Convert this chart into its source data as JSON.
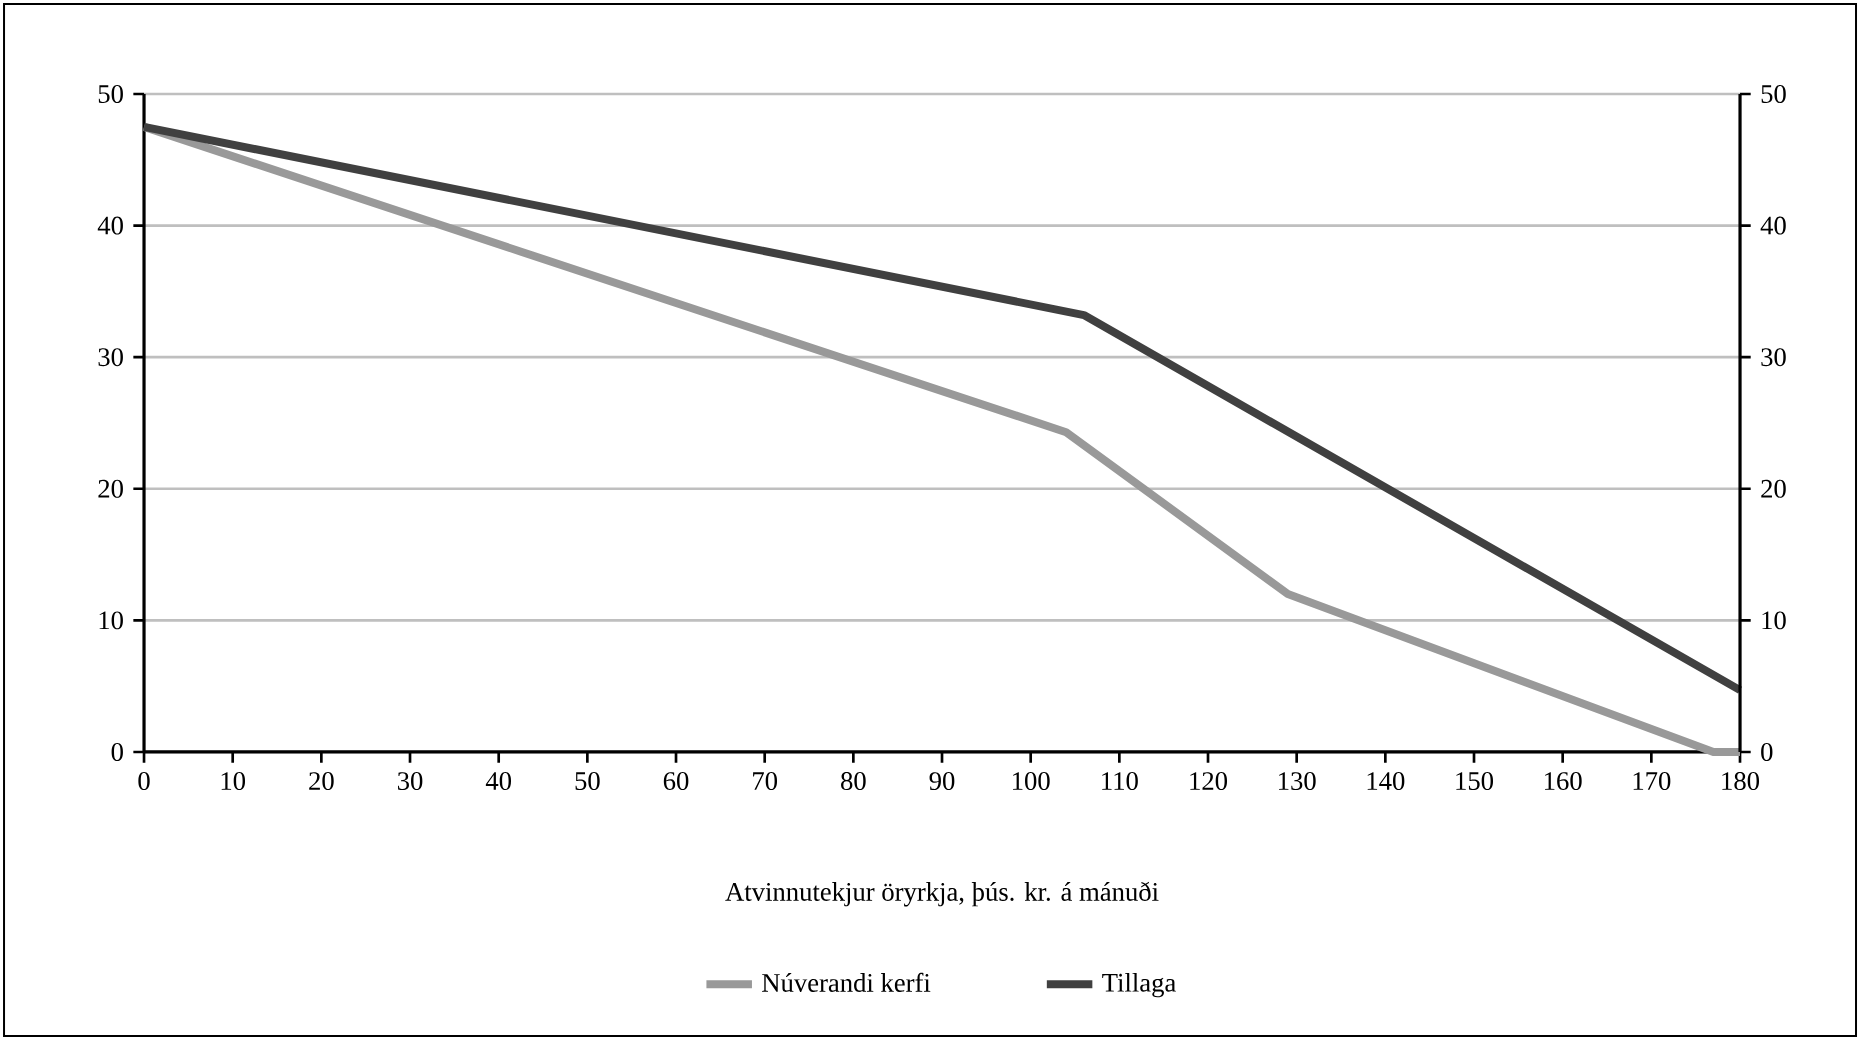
{
  "chart_data": {
    "type": "line",
    "xlabel": "Atvinnutekjur öryrkja, þús. kr. á mánuði",
    "series": [
      {
        "name": "Núverandi kerfi",
        "color": "#999999",
        "x": [
          0,
          104,
          129,
          177,
          180
        ],
        "values": [
          47.5,
          24.3,
          12,
          0,
          0
        ]
      },
      {
        "name": "Tillaga",
        "color": "#404040",
        "x": [
          0,
          106,
          180
        ],
        "values": [
          47.5,
          33.2,
          4.7
        ]
      }
    ],
    "xlim": [
      0,
      180
    ],
    "xticks": [
      0,
      10,
      20,
      30,
      40,
      50,
      60,
      70,
      80,
      90,
      100,
      110,
      120,
      130,
      140,
      150,
      160,
      170,
      180
    ],
    "ylim": [
      0,
      50
    ],
    "yticks": [
      0,
      10,
      20,
      30,
      40,
      50
    ],
    "y2lim": [
      0,
      50
    ],
    "y2ticks": [
      0,
      10,
      20,
      30,
      40,
      50
    ],
    "grid": "y",
    "legend": "bottom",
    "marker": "none",
    "line_style": "solid"
  }
}
